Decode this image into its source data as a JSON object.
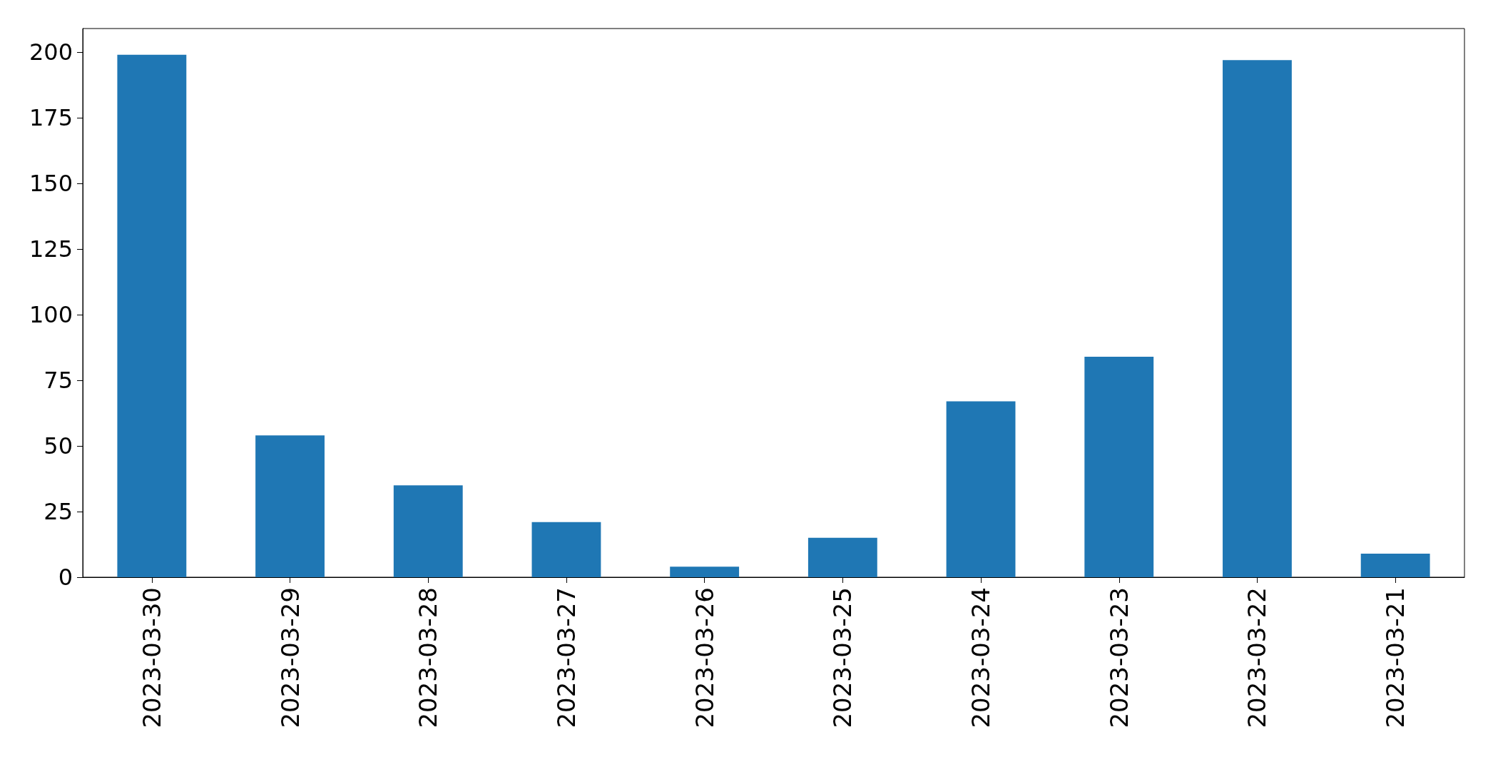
{
  "chart_data": {
    "type": "bar",
    "categories": [
      "2023-03-30",
      "2023-03-29",
      "2023-03-28",
      "2023-03-27",
      "2023-03-26",
      "2023-03-25",
      "2023-03-24",
      "2023-03-23",
      "2023-03-22",
      "2023-03-21"
    ],
    "values": [
      199,
      54,
      35,
      21,
      4,
      15,
      67,
      84,
      197,
      9
    ],
    "color": "#1f77b4",
    "ylim": [
      0,
      209
    ],
    "yticks": [
      0,
      25,
      50,
      75,
      100,
      125,
      150,
      175,
      200
    ],
    "grid": false
  }
}
